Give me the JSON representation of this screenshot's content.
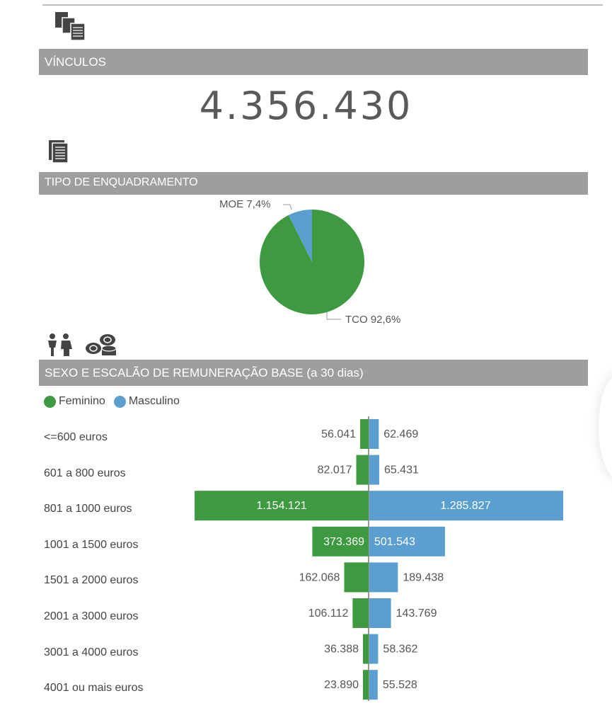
{
  "sections": {
    "vinculos": {
      "title": "VÍNCULOS",
      "icon": "documents-icon"
    },
    "kpi": {
      "value": "4.356.430"
    },
    "enquadramento": {
      "title": "TIPO DE ENQUADRAMENTO",
      "icon": "document-icon"
    },
    "sexo": {
      "title": "SEXO E ESCALÃO DE REMUNERAÇÃO BASE (a 30 dias)",
      "icons": [
        "people-icon",
        "coins-icon"
      ]
    }
  },
  "colors": {
    "green": "#3d9a40",
    "blue": "#5b9fd1",
    "header": "#9e9e9e"
  },
  "chart_data": [
    {
      "type": "pie",
      "title": "TIPO DE ENQUADRAMENTO",
      "slices": [
        {
          "label": "MOE 7,4%",
          "name": "MOE",
          "value": 7.4,
          "color": "#5b9fd1"
        },
        {
          "label": "TCO 92,6%",
          "name": "TCO",
          "value": 92.6,
          "color": "#3d9a40"
        }
      ]
    },
    {
      "type": "bar",
      "orientation": "horizontal-diverging",
      "title": "SEXO E ESCALÃO DE REMUNERAÇÃO BASE (a 30 dias)",
      "legend": "top-left",
      "categories": [
        "<=600 euros",
        "601 a 800 euros",
        "801 a 1000 euros",
        "1001 a 1500 euros",
        "1501 a 2000 euros",
        "2001 a 3000 euros",
        "3001 a 4000 euros",
        "4001 ou mais euros"
      ],
      "series": [
        {
          "name": "Feminino",
          "color": "#3d9a40",
          "values": [
            56041,
            82017,
            1154121,
            373369,
            162068,
            106112,
            36388,
            23890
          ],
          "labels": [
            "56.041",
            "82.017",
            "1.154.121",
            "373.369",
            "162.068",
            "106.112",
            "36.388",
            "23.890"
          ]
        },
        {
          "name": "Masculino",
          "color": "#5b9fd1",
          "values": [
            62469,
            65431,
            1285827,
            501543,
            189438,
            143769,
            58362,
            55528
          ],
          "labels": [
            "62.469",
            "65.431",
            "1.285.827",
            "501.543",
            "189.438",
            "143.769",
            "58.362",
            "55.528"
          ]
        }
      ]
    }
  ]
}
